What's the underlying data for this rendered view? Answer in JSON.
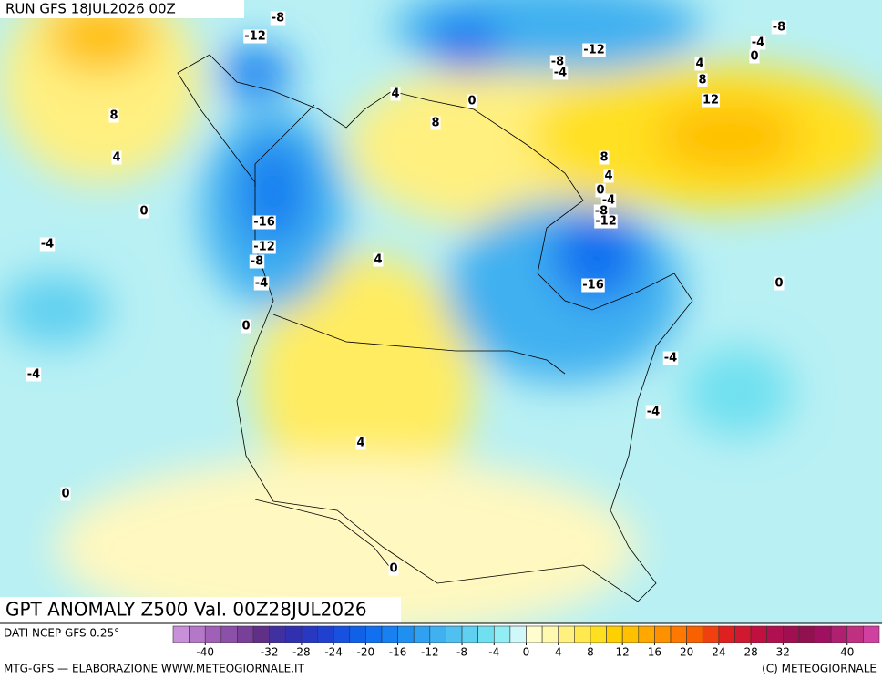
{
  "header": {
    "run": "RUN GFS 18JUL2026 00Z"
  },
  "map": {
    "title": "GPT ANOMALY Z500 Val. 00Z28JUL2026",
    "contour_labels": [
      -8,
      -12,
      8,
      4,
      0,
      -4,
      -16,
      -12,
      -8,
      -4,
      0,
      -4,
      0,
      4,
      4,
      0,
      4,
      8,
      0,
      -8,
      -4,
      -12,
      -8,
      -4,
      0,
      4,
      8,
      12,
      8,
      4,
      0,
      -4,
      -8,
      -12,
      -16,
      0,
      -4,
      -4
    ]
  },
  "colorbar": {
    "source": "DATI NCEP GFS 0.25°",
    "range": [
      -44,
      44
    ],
    "colors": [
      "#c890d8",
      "#b478c8",
      "#a060b8",
      "#8c50a8",
      "#784098",
      "#603088",
      "#4030a0",
      "#3030b0",
      "#2838c0",
      "#2040d0",
      "#1850e0",
      "#1060e8",
      "#1070f0",
      "#1880f0",
      "#2090f0",
      "#30a0f0",
      "#40b0f0",
      "#50c0f0",
      "#60d0f0",
      "#70e0f0",
      "#90eef4",
      "#d0f8f8",
      "#fffcd0",
      "#fff8b0",
      "#fff080",
      "#ffe850",
      "#ffe020",
      "#ffd000",
      "#ffc000",
      "#ffa800",
      "#ff9000",
      "#ff7800",
      "#f86000",
      "#f04010",
      "#e02020",
      "#d01830",
      "#c01040",
      "#b01050",
      "#a01050",
      "#901050",
      "#a01060",
      "#b02070",
      "#c03080",
      "#d040a0"
    ],
    "ticks": [
      -40,
      -32,
      -28,
      -24,
      -20,
      -16,
      -12,
      -8,
      -4,
      0,
      4,
      8,
      12,
      16,
      20,
      24,
      28,
      32,
      40
    ]
  },
  "footer": {
    "left": "MTG-GFS — ELABORAZIONE WWW.METEOGIORNALE.IT",
    "right": "(C) METEOGIORNALE"
  }
}
